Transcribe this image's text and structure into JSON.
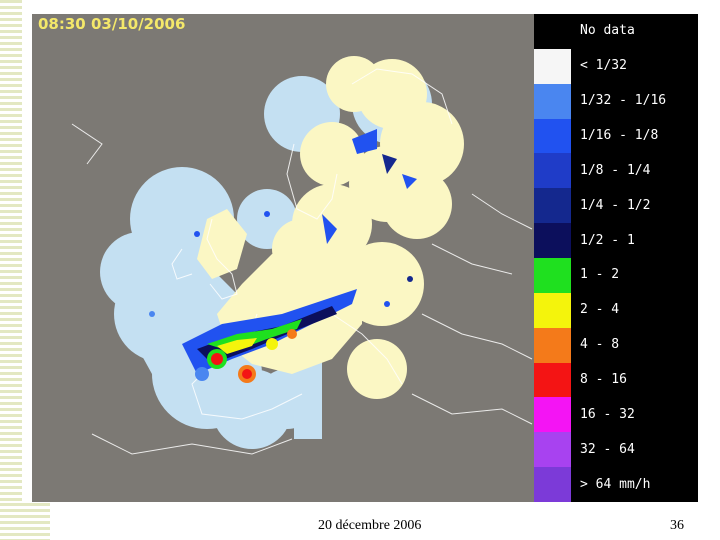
{
  "map": {
    "timestamp": "08:30 03/10/2006",
    "colors": {
      "background": "#7c7974",
      "coverage_sea": "#c4e0f2",
      "coverage_land": "#fbf7c4",
      "coastline": "#ffffff"
    }
  },
  "legend": {
    "items": [
      {
        "label": "No data",
        "color": "#000000"
      },
      {
        "label": "< 1/32",
        "color": "#f6f6f6"
      },
      {
        "label": "1/32 - 1/16",
        "color": "#4a86f0"
      },
      {
        "label": "1/16 - 1/8",
        "color": "#2152f0"
      },
      {
        "label": "1/8 - 1/4",
        "color": "#1f3cc8"
      },
      {
        "label": "1/4 - 1/2",
        "color": "#14288e"
      },
      {
        "label": "1/2 - 1",
        "color": "#0c0f5c"
      },
      {
        "label": "1 - 2",
        "color": "#1fe01f"
      },
      {
        "label": "2 - 4",
        "color": "#f4f40c"
      },
      {
        "label": "4 - 8",
        "color": "#f47a1a"
      },
      {
        "label": "8 - 16",
        "color": "#f41414"
      },
      {
        "label": "16 - 32",
        "color": "#f414f4"
      },
      {
        "label": "32 - 64",
        "color": "#a842f0"
      },
      {
        "label": "> 64 mm/h",
        "color": "#7c3ad8"
      }
    ]
  },
  "footer": {
    "date": "20 décembre 2006",
    "page": "36"
  }
}
